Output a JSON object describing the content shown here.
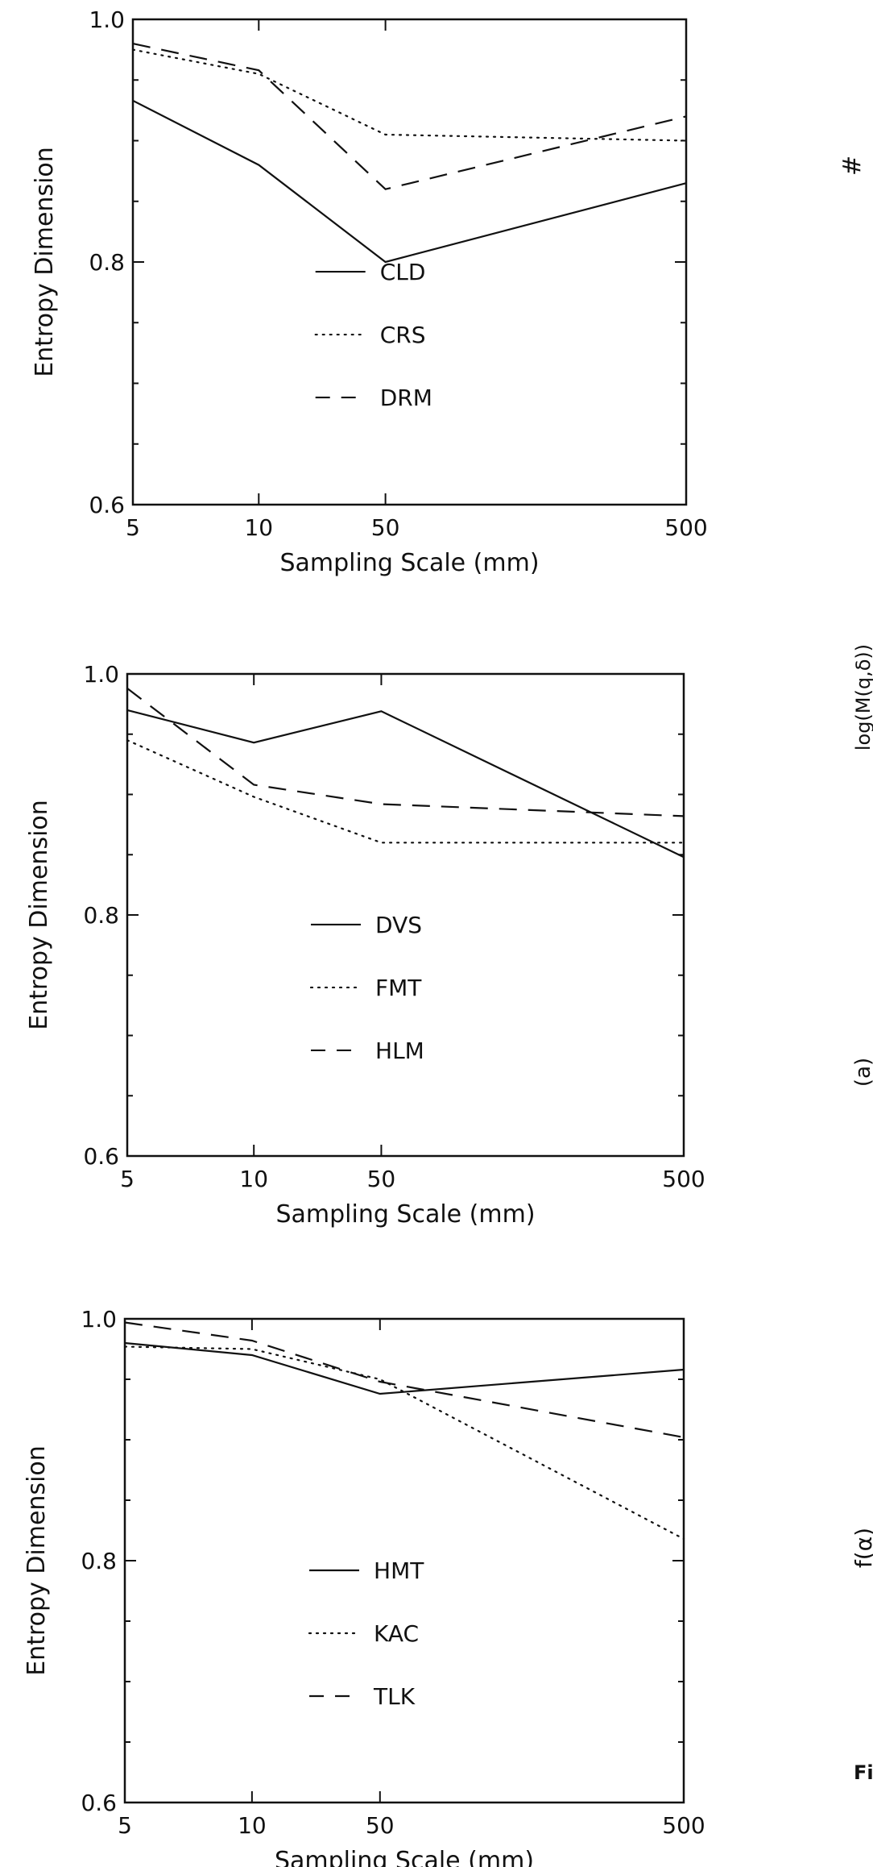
{
  "chart_data": [
    {
      "type": "line",
      "title": "",
      "xlabel": "Sampling Scale (mm)",
      "ylabel": "Entropy Dimension",
      "categories": [
        "5",
        "10",
        "50",
        "500"
      ],
      "x_scale": "categorical (log-like spacing)",
      "ylim": [
        0.6,
        1.0
      ],
      "yticks": [
        "0.6",
        "0.8",
        "1.0"
      ],
      "grid": false,
      "legend_position": "center",
      "series": [
        {
          "name": "CLD",
          "style": "solid",
          "values": [
            0.933,
            0.88,
            0.8,
            0.865
          ]
        },
        {
          "name": "CRS",
          "style": "dotted",
          "values": [
            0.975,
            0.955,
            0.905,
            0.9
          ]
        },
        {
          "name": "DRM",
          "style": "dashed",
          "values": [
            0.98,
            0.958,
            0.86,
            0.92
          ]
        }
      ]
    },
    {
      "type": "line",
      "title": "",
      "xlabel": "Sampling Scale (mm)",
      "ylabel": "Entropy Dimension",
      "categories": [
        "5",
        "10",
        "50",
        "500"
      ],
      "x_scale": "categorical (log-like spacing)",
      "ylim": [
        0.6,
        1.0
      ],
      "yticks": [
        "0.6",
        "0.8",
        "1.0"
      ],
      "grid": false,
      "legend_position": "center",
      "series": [
        {
          "name": "DVS",
          "style": "solid",
          "values": [
            0.97,
            0.943,
            0.969,
            0.848
          ]
        },
        {
          "name": "FMT",
          "style": "dotted",
          "values": [
            0.945,
            0.898,
            0.86,
            0.86
          ]
        },
        {
          "name": "HLM",
          "style": "dashed",
          "values": [
            0.988,
            0.908,
            0.892,
            0.882
          ]
        }
      ]
    },
    {
      "type": "line",
      "title": "",
      "xlabel": "Sampling Scale (mm)",
      "ylabel": "Entropy Dimension",
      "categories": [
        "5",
        "10",
        "50",
        "500"
      ],
      "x_scale": "categorical (log-like spacing)",
      "ylim": [
        0.6,
        1.0
      ],
      "yticks": [
        "0.6",
        "0.8",
        "1.0"
      ],
      "grid": false,
      "legend_position": "center",
      "series": [
        {
          "name": "HMT",
          "style": "solid",
          "values": [
            0.98,
            0.97,
            0.938,
            0.958
          ]
        },
        {
          "name": "KAC",
          "style": "dotted",
          "values": [
            0.977,
            0.975,
            0.95,
            0.818
          ]
        },
        {
          "name": "TLK",
          "style": "dashed",
          "values": [
            0.997,
            0.982,
            0.948,
            0.902
          ]
        }
      ]
    }
  ],
  "margin_text": {
    "frag_1": "#",
    "frag_2": "log(M(q,δ))",
    "frag_3": "(a)",
    "frag_4": "f(α)",
    "frag_5": "Fi"
  }
}
